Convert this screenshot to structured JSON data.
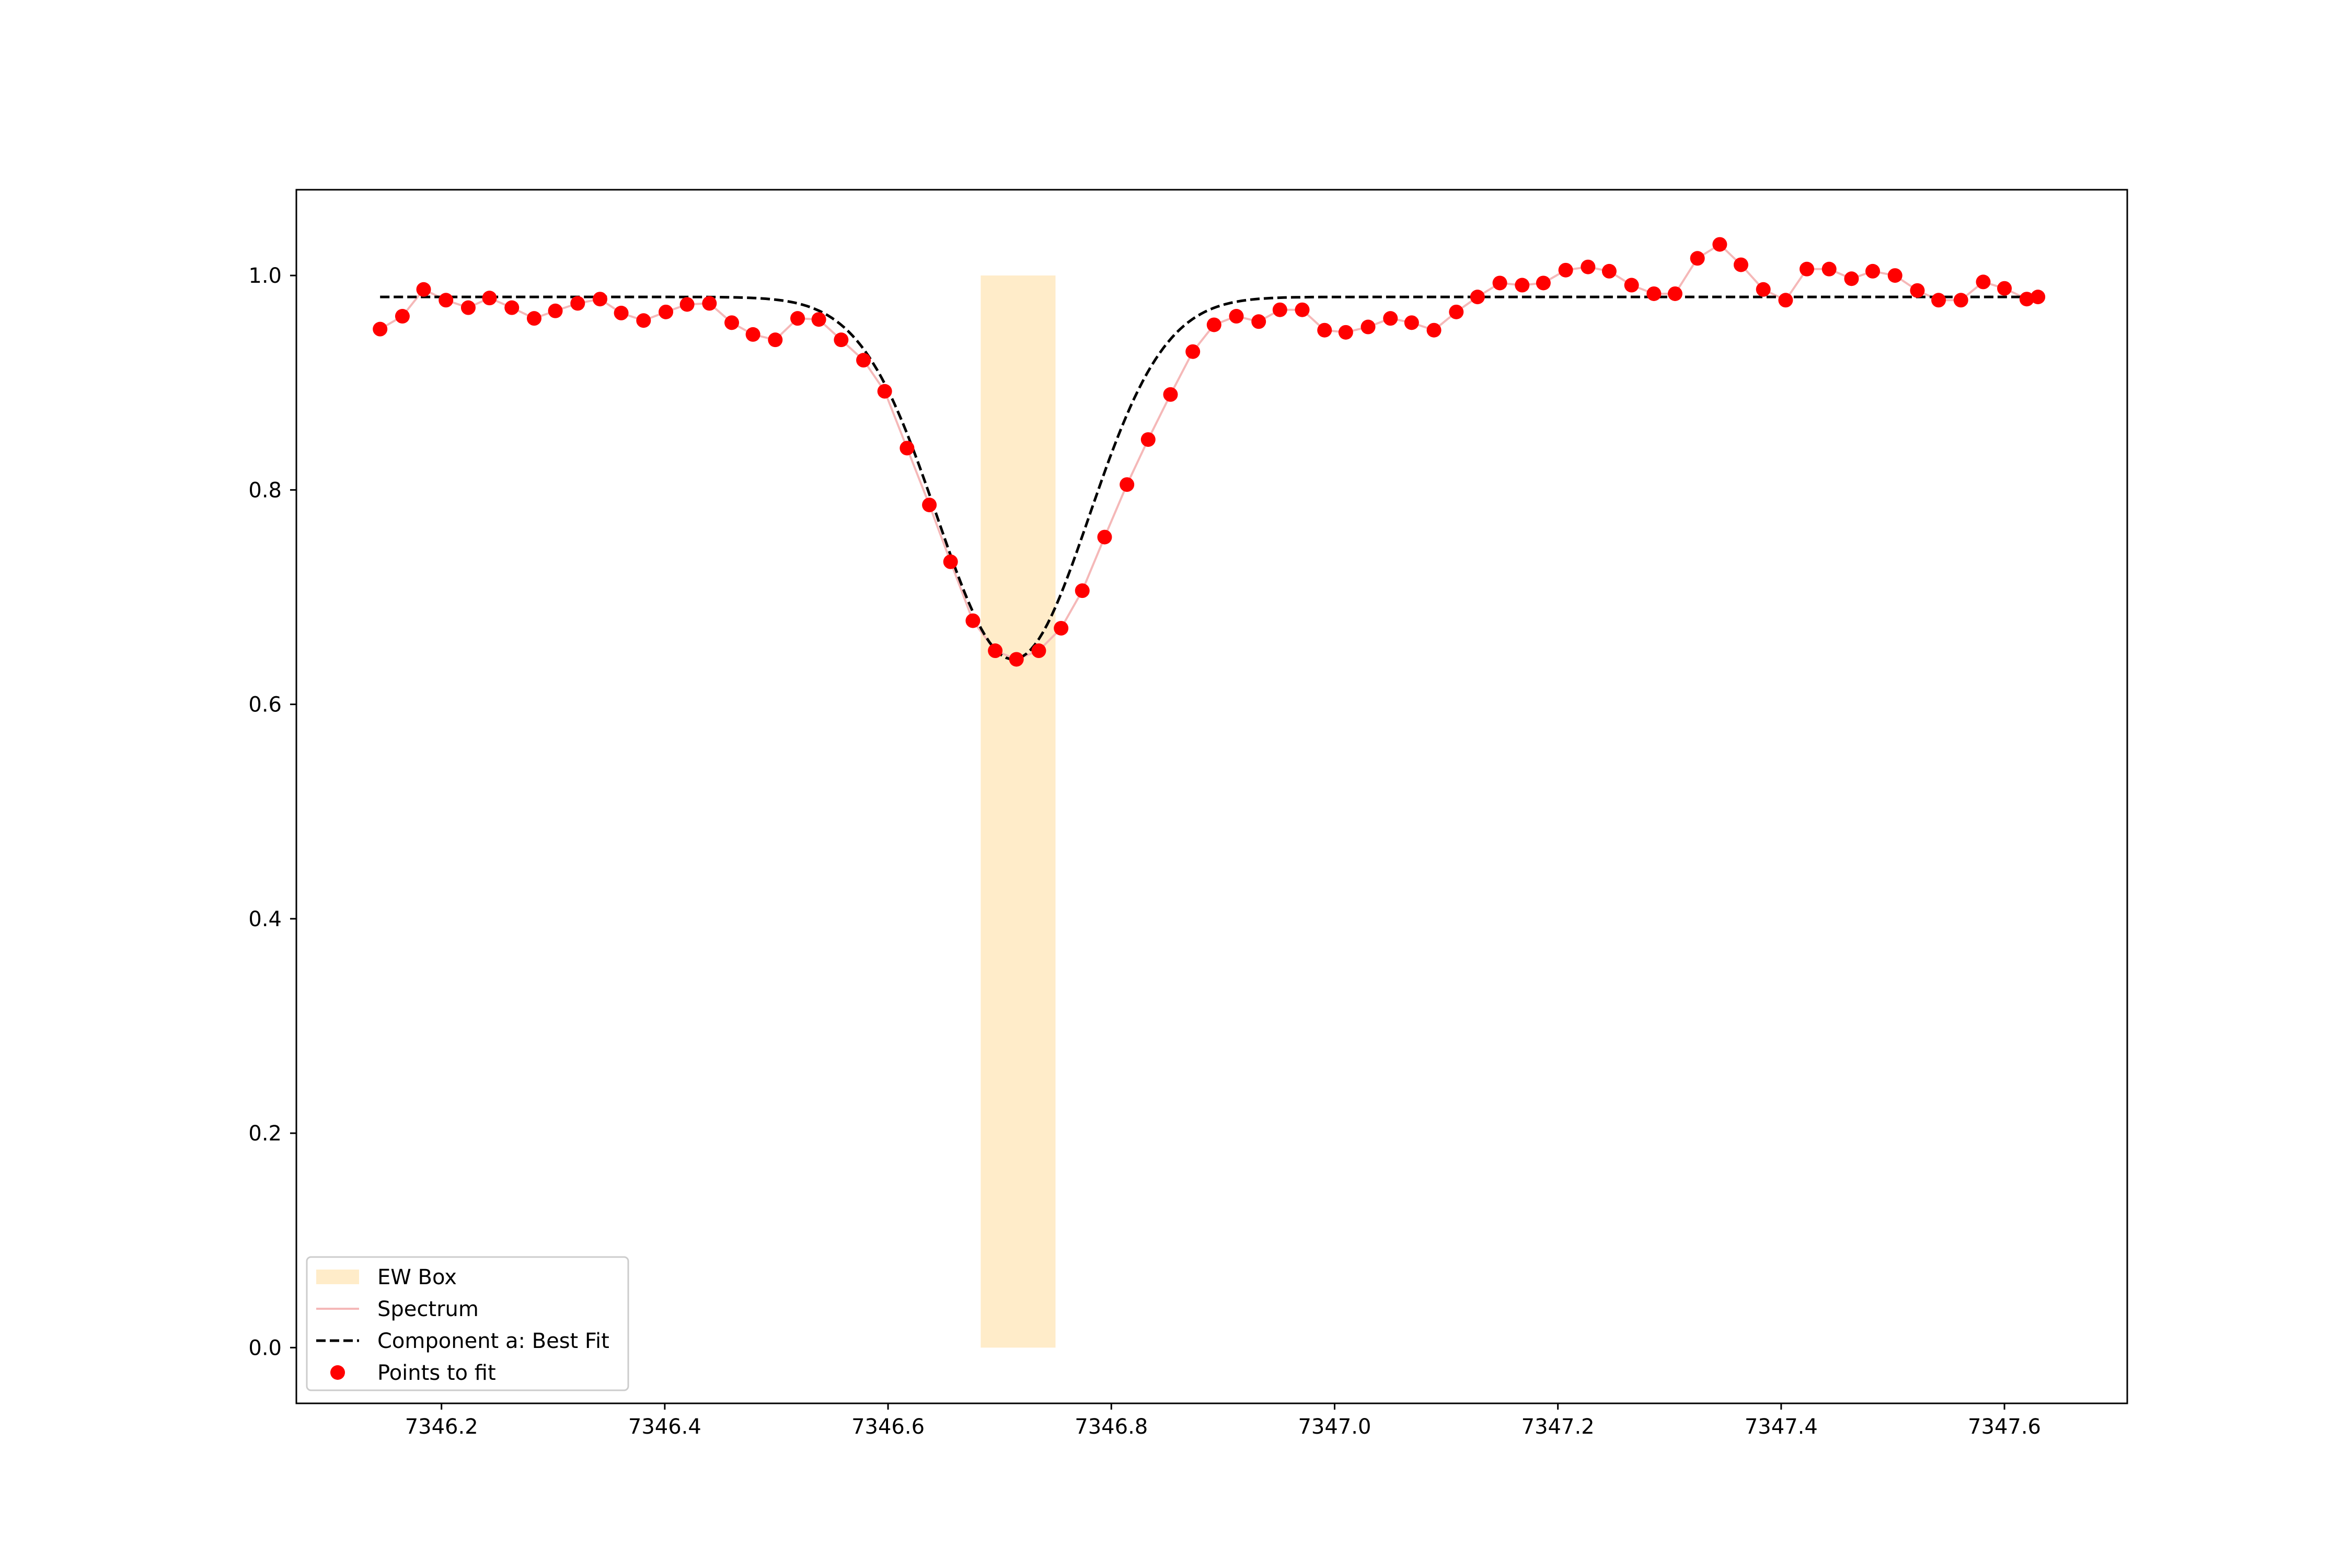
{
  "chart_data": {
    "type": "line",
    "title": "",
    "xlabel": "",
    "ylabel": "",
    "xlim": [
      7346.07,
      7347.71
    ],
    "ylim": [
      -0.052,
      1.08
    ],
    "xticks": [
      7346.2,
      7346.4,
      7346.6,
      7346.8,
      7347.0,
      7347.2,
      7347.4,
      7347.6
    ],
    "xtick_labels": [
      "7346.2",
      "7346.4",
      "7346.6",
      "7346.8",
      "7347.0",
      "7347.2",
      "7347.4",
      "7347.6"
    ],
    "yticks": [
      0.0,
      0.2,
      0.4,
      0.6,
      0.8,
      1.0
    ],
    "ytick_labels": [
      "0.0",
      "0.2",
      "0.4",
      "0.6",
      "0.8",
      "1.0"
    ],
    "grid": false,
    "legend": {
      "placement": "lower-left",
      "entries": [
        {
          "label": "EW Box",
          "kind": "patch",
          "color": "#ffecc9"
        },
        {
          "label": "Spectrum",
          "kind": "line",
          "color": "#f5b8b8"
        },
        {
          "label": "Component a: Best Fit",
          "kind": "dashed-line",
          "color": "#000000"
        },
        {
          "label": "Points to fit",
          "kind": "marker",
          "color": "#ff0000"
        }
      ]
    },
    "ew_box": {
      "label": "EW Box",
      "x_range": [
        7346.683,
        7346.75
      ],
      "y_range": [
        0.0,
        1.0
      ],
      "color": "#ffecc9"
    },
    "best_fit": {
      "label": "Component a: Best Fit",
      "continuum": 0.98,
      "center": 7346.712,
      "depth": 0.338,
      "sigma": 0.068,
      "x_range": [
        7346.145,
        7347.63
      ],
      "color": "#000000"
    },
    "series": [
      {
        "name": "Points to fit",
        "color": "#ff0000",
        "spectrum_color": "#f5b8b8",
        "x": [
          7346.145,
          7346.165,
          7346.184,
          7346.204,
          7346.224,
          7346.243,
          7346.263,
          7346.283,
          7346.302,
          7346.322,
          7346.342,
          7346.361,
          7346.381,
          7346.401,
          7346.42,
          7346.44,
          7346.46,
          7346.479,
          7346.499,
          7346.519,
          7346.538,
          7346.558,
          7346.578,
          7346.597,
          7346.617,
          7346.637,
          7346.656,
          7346.676,
          7346.696,
          7346.715,
          7346.735,
          7346.755,
          7346.774,
          7346.794,
          7346.814,
          7346.833,
          7346.853,
          7346.873,
          7346.892,
          7346.912,
          7346.932,
          7346.951,
          7346.971,
          7346.991,
          7347.01,
          7347.03,
          7347.05,
          7347.069,
          7347.089,
          7347.109,
          7347.128,
          7347.148,
          7347.168,
          7347.187,
          7347.207,
          7347.227,
          7347.246,
          7347.266,
          7347.286,
          7347.305,
          7347.325,
          7347.345,
          7347.364,
          7347.384,
          7347.404,
          7347.423,
          7347.443,
          7347.463,
          7347.482,
          7347.502,
          7347.522,
          7347.541,
          7347.561,
          7347.581,
          7347.6,
          7347.62,
          7347.63
        ],
        "y": [
          0.95,
          0.962,
          0.987,
          0.977,
          0.97,
          0.979,
          0.97,
          0.96,
          0.967,
          0.974,
          0.978,
          0.965,
          0.958,
          0.966,
          0.973,
          0.974,
          0.956,
          0.945,
          0.94,
          0.96,
          0.959,
          0.94,
          0.921,
          0.892,
          0.839,
          0.786,
          0.733,
          0.678,
          0.65,
          0.642,
          0.65,
          0.671,
          0.706,
          0.756,
          0.805,
          0.847,
          0.889,
          0.929,
          0.954,
          0.962,
          0.957,
          0.968,
          0.968,
          0.949,
          0.947,
          0.952,
          0.96,
          0.956,
          0.949,
          0.966,
          0.98,
          0.993,
          0.991,
          0.993,
          1.005,
          1.008,
          1.004,
          0.991,
          0.983,
          0.983,
          1.016,
          1.029,
          1.01,
          0.987,
          0.977,
          1.006,
          1.006,
          0.997,
          1.004,
          1.0,
          0.986,
          0.977,
          0.977,
          0.994,
          0.988,
          0.978,
          0.98
        ]
      }
    ]
  }
}
